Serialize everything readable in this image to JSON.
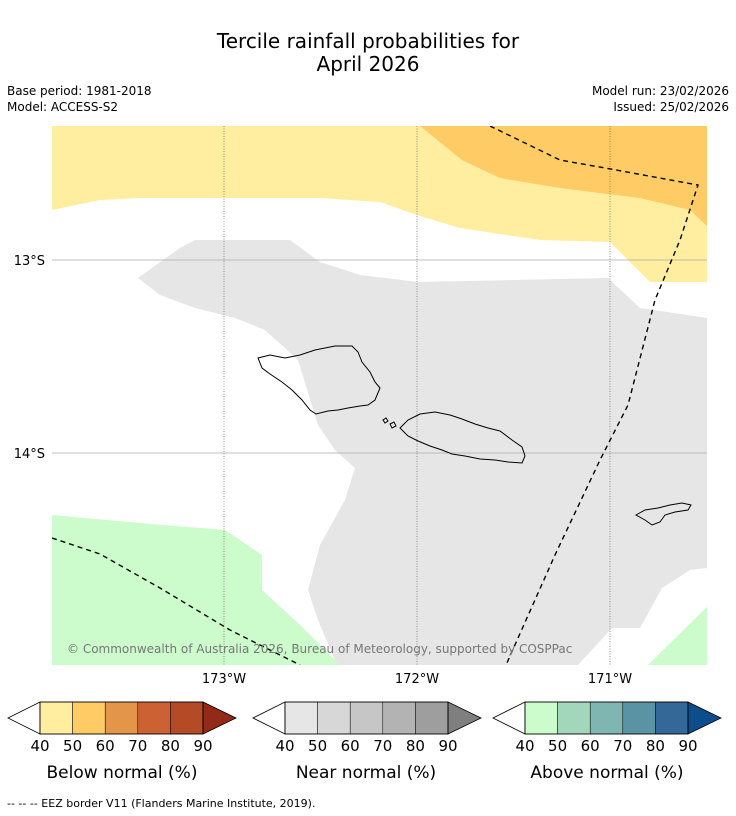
{
  "title": {
    "line1": "Tercile rainfall probabilities for",
    "line2": "April 2026"
  },
  "meta": {
    "base_period": "Base period: 1981-2018",
    "model": "Model: ACCESS-S2",
    "model_run": "Model run: 23/02/2026",
    "issued": "Issued: 25/02/2026"
  },
  "map": {
    "lat_labels": [
      "13°S",
      "14°S"
    ],
    "lon_labels": [
      "173°W",
      "172°W",
      "171°W"
    ],
    "copyright": "© Commonwealth of Australia 2026, Bureau of Meteorology, supported by COSPPac"
  },
  "legends": [
    {
      "title": "Below normal (%)",
      "ticks": [
        "40",
        "50",
        "60",
        "70",
        "80",
        "90"
      ],
      "colors": [
        "#ffeda0",
        "#fecb65",
        "#e3964a",
        "#cc6133",
        "#b44b26",
        "#932a17"
      ]
    },
    {
      "title": "Near normal (%)",
      "ticks": [
        "40",
        "50",
        "60",
        "70",
        "80",
        "90"
      ],
      "colors": [
        "#e6e6e6",
        "#d7d7d7",
        "#c6c6c6",
        "#b3b3b3",
        "#9e9e9e",
        "#7f7f7f"
      ]
    },
    {
      "title": "Above normal (%)",
      "ticks": [
        "40",
        "50",
        "60",
        "70",
        "80",
        "90"
      ],
      "colors": [
        "#ccfbcc",
        "#a3d7bc",
        "#80b6b2",
        "#5a93a3",
        "#336899",
        "#0e4d8c"
      ]
    }
  ],
  "footer": "--  --  -- EEZ border V11 (Flanders Marine Institute, 2019)."
}
